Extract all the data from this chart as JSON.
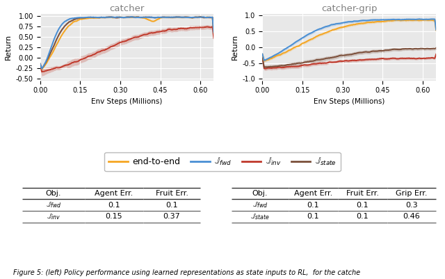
{
  "title_left": "catcher",
  "title_right": "catcher-grip",
  "xlabel": "Env Steps (Millions)",
  "ylabel": "Return",
  "bg_color": "#e8e8e8",
  "colors": {
    "end_to_end": "#f5a623",
    "fwd": "#4a8fd4",
    "inv": "#c0392b",
    "state": "#7b4f3a"
  },
  "xlim": [
    0,
    0.65
  ],
  "xticks": [
    0.0,
    0.15,
    0.3,
    0.45,
    0.6
  ],
  "left_ylim": [
    -0.55,
    1.05
  ],
  "left_yticks": [
    -0.5,
    -0.25,
    0.0,
    0.25,
    0.5,
    0.75,
    1.0
  ],
  "right_ylim": [
    -1.05,
    1.05
  ],
  "right_yticks": [
    -1.0,
    -0.5,
    0.0,
    0.5,
    1.0
  ],
  "table1_headers": [
    "Obj.",
    "Agent Err.",
    "Fruit Err."
  ],
  "table1_rows": [
    [
      "$\\mathbb{J}_{fwd}$",
      "0.1",
      "0.1"
    ],
    [
      "$\\mathbb{J}_{inv}$",
      "0.15",
      "0.37"
    ]
  ],
  "table2_headers": [
    "Obj.",
    "Agent Err.",
    "Fruit Err.",
    "Grip Err."
  ],
  "table2_rows": [
    [
      "$\\mathbb{J}_{fwd}$",
      "0.1",
      "0.1",
      "0.3"
    ],
    [
      "$\\mathbb{J}_{state}$",
      "0.1",
      "0.1",
      "0.46"
    ]
  ],
  "caption": "Figure 5: (left) Policy performance using learned representations as state inputs to RL,  for the catche"
}
